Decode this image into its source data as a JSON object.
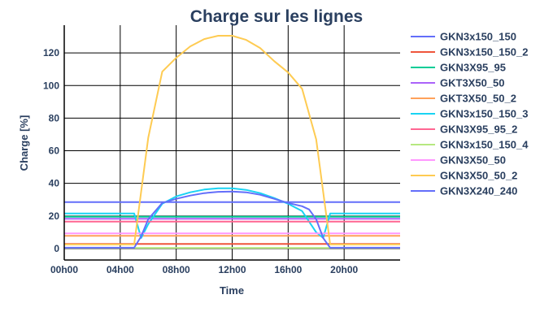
{
  "chart_data": {
    "type": "line",
    "title": "Charge sur les lignes",
    "xlabel": "Time",
    "ylabel": "Charge [%]",
    "x_ticks": [
      "00h00",
      "04h00",
      "08h00",
      "12h00",
      "16h00",
      "20h00"
    ],
    "x_tick_hours": [
      0,
      4,
      8,
      12,
      16,
      20
    ],
    "y_ticks": [
      0,
      20,
      40,
      60,
      80,
      100,
      120
    ],
    "xlim": [
      0,
      24
    ],
    "ylim": [
      -7,
      137
    ],
    "grid": true,
    "legend_position": "right",
    "series": [
      {
        "name": "GKN3x150_150",
        "color": "#636efa",
        "x": [
          0,
          24
        ],
        "y": [
          28.5,
          28.5
        ]
      },
      {
        "name": "GKN3x150_150_2",
        "color": "#ef553b",
        "x": [
          0,
          24
        ],
        "y": [
          2.8,
          2.8
        ]
      },
      {
        "name": "GKN3X95_95",
        "color": "#00cc96",
        "x": [
          0,
          24
        ],
        "y": [
          19.5,
          19.5
        ]
      },
      {
        "name": "GKT3X50_50",
        "color": "#ab63fa",
        "x": [
          0,
          24
        ],
        "y": [
          18.3,
          18.3
        ]
      },
      {
        "name": "GKT3X50_50_2",
        "color": "#ffa15a",
        "x": [
          0,
          24
        ],
        "y": [
          7.8,
          7.8
        ]
      },
      {
        "name": "GKN3x150_150_3",
        "color": "#19d3f3",
        "x": [
          0,
          4.5,
          5,
          5.5,
          6,
          7,
          8,
          9,
          10,
          11,
          12,
          13,
          14,
          15,
          16,
          17,
          18,
          18.5,
          19,
          24
        ],
        "y": [
          21.5,
          21.5,
          21.5,
          6.5,
          15,
          27.5,
          32,
          34.5,
          36.2,
          37,
          37,
          36,
          34,
          31,
          27.5,
          23,
          10,
          6.5,
          21.5,
          21.5
        ]
      },
      {
        "name": "GKN3X95_95_2",
        "color": "#ff6692",
        "x": [
          0,
          24
        ],
        "y": [
          16.5,
          16.5
        ]
      },
      {
        "name": "GKN3x150_150_4",
        "color": "#b6e880",
        "x": [
          0,
          24
        ],
        "y": [
          0.4,
          0.4
        ]
      },
      {
        "name": "GKN3X50_50",
        "color": "#ff97ff",
        "x": [
          0,
          24
        ],
        "y": [
          9.3,
          9.3
        ]
      },
      {
        "name": "GKN3X50_50_2",
        "color": "#fecb52",
        "x": [
          0,
          5,
          6,
          7,
          8,
          9,
          10,
          11,
          12,
          13,
          14,
          15,
          16,
          17,
          18,
          19,
          24
        ],
        "y": [
          2.5,
          2.5,
          68,
          108.5,
          117,
          124,
          128.5,
          130.5,
          130.5,
          128,
          123,
          115,
          108,
          98,
          67,
          2.5,
          2.5
        ]
      },
      {
        "name": "GKN3X240_240",
        "color": "#636efa",
        "x": [
          0,
          5,
          5.5,
          6,
          7,
          8,
          9,
          10,
          11,
          12,
          13,
          14,
          15,
          16,
          17,
          17.5,
          18,
          18.5,
          19,
          24
        ],
        "y": [
          0.5,
          0.5,
          7.5,
          18,
          28,
          30.5,
          32.5,
          34,
          34.8,
          35,
          34.5,
          33,
          30.5,
          28,
          26,
          24,
          18,
          6.5,
          0.5,
          0.5
        ]
      }
    ]
  }
}
